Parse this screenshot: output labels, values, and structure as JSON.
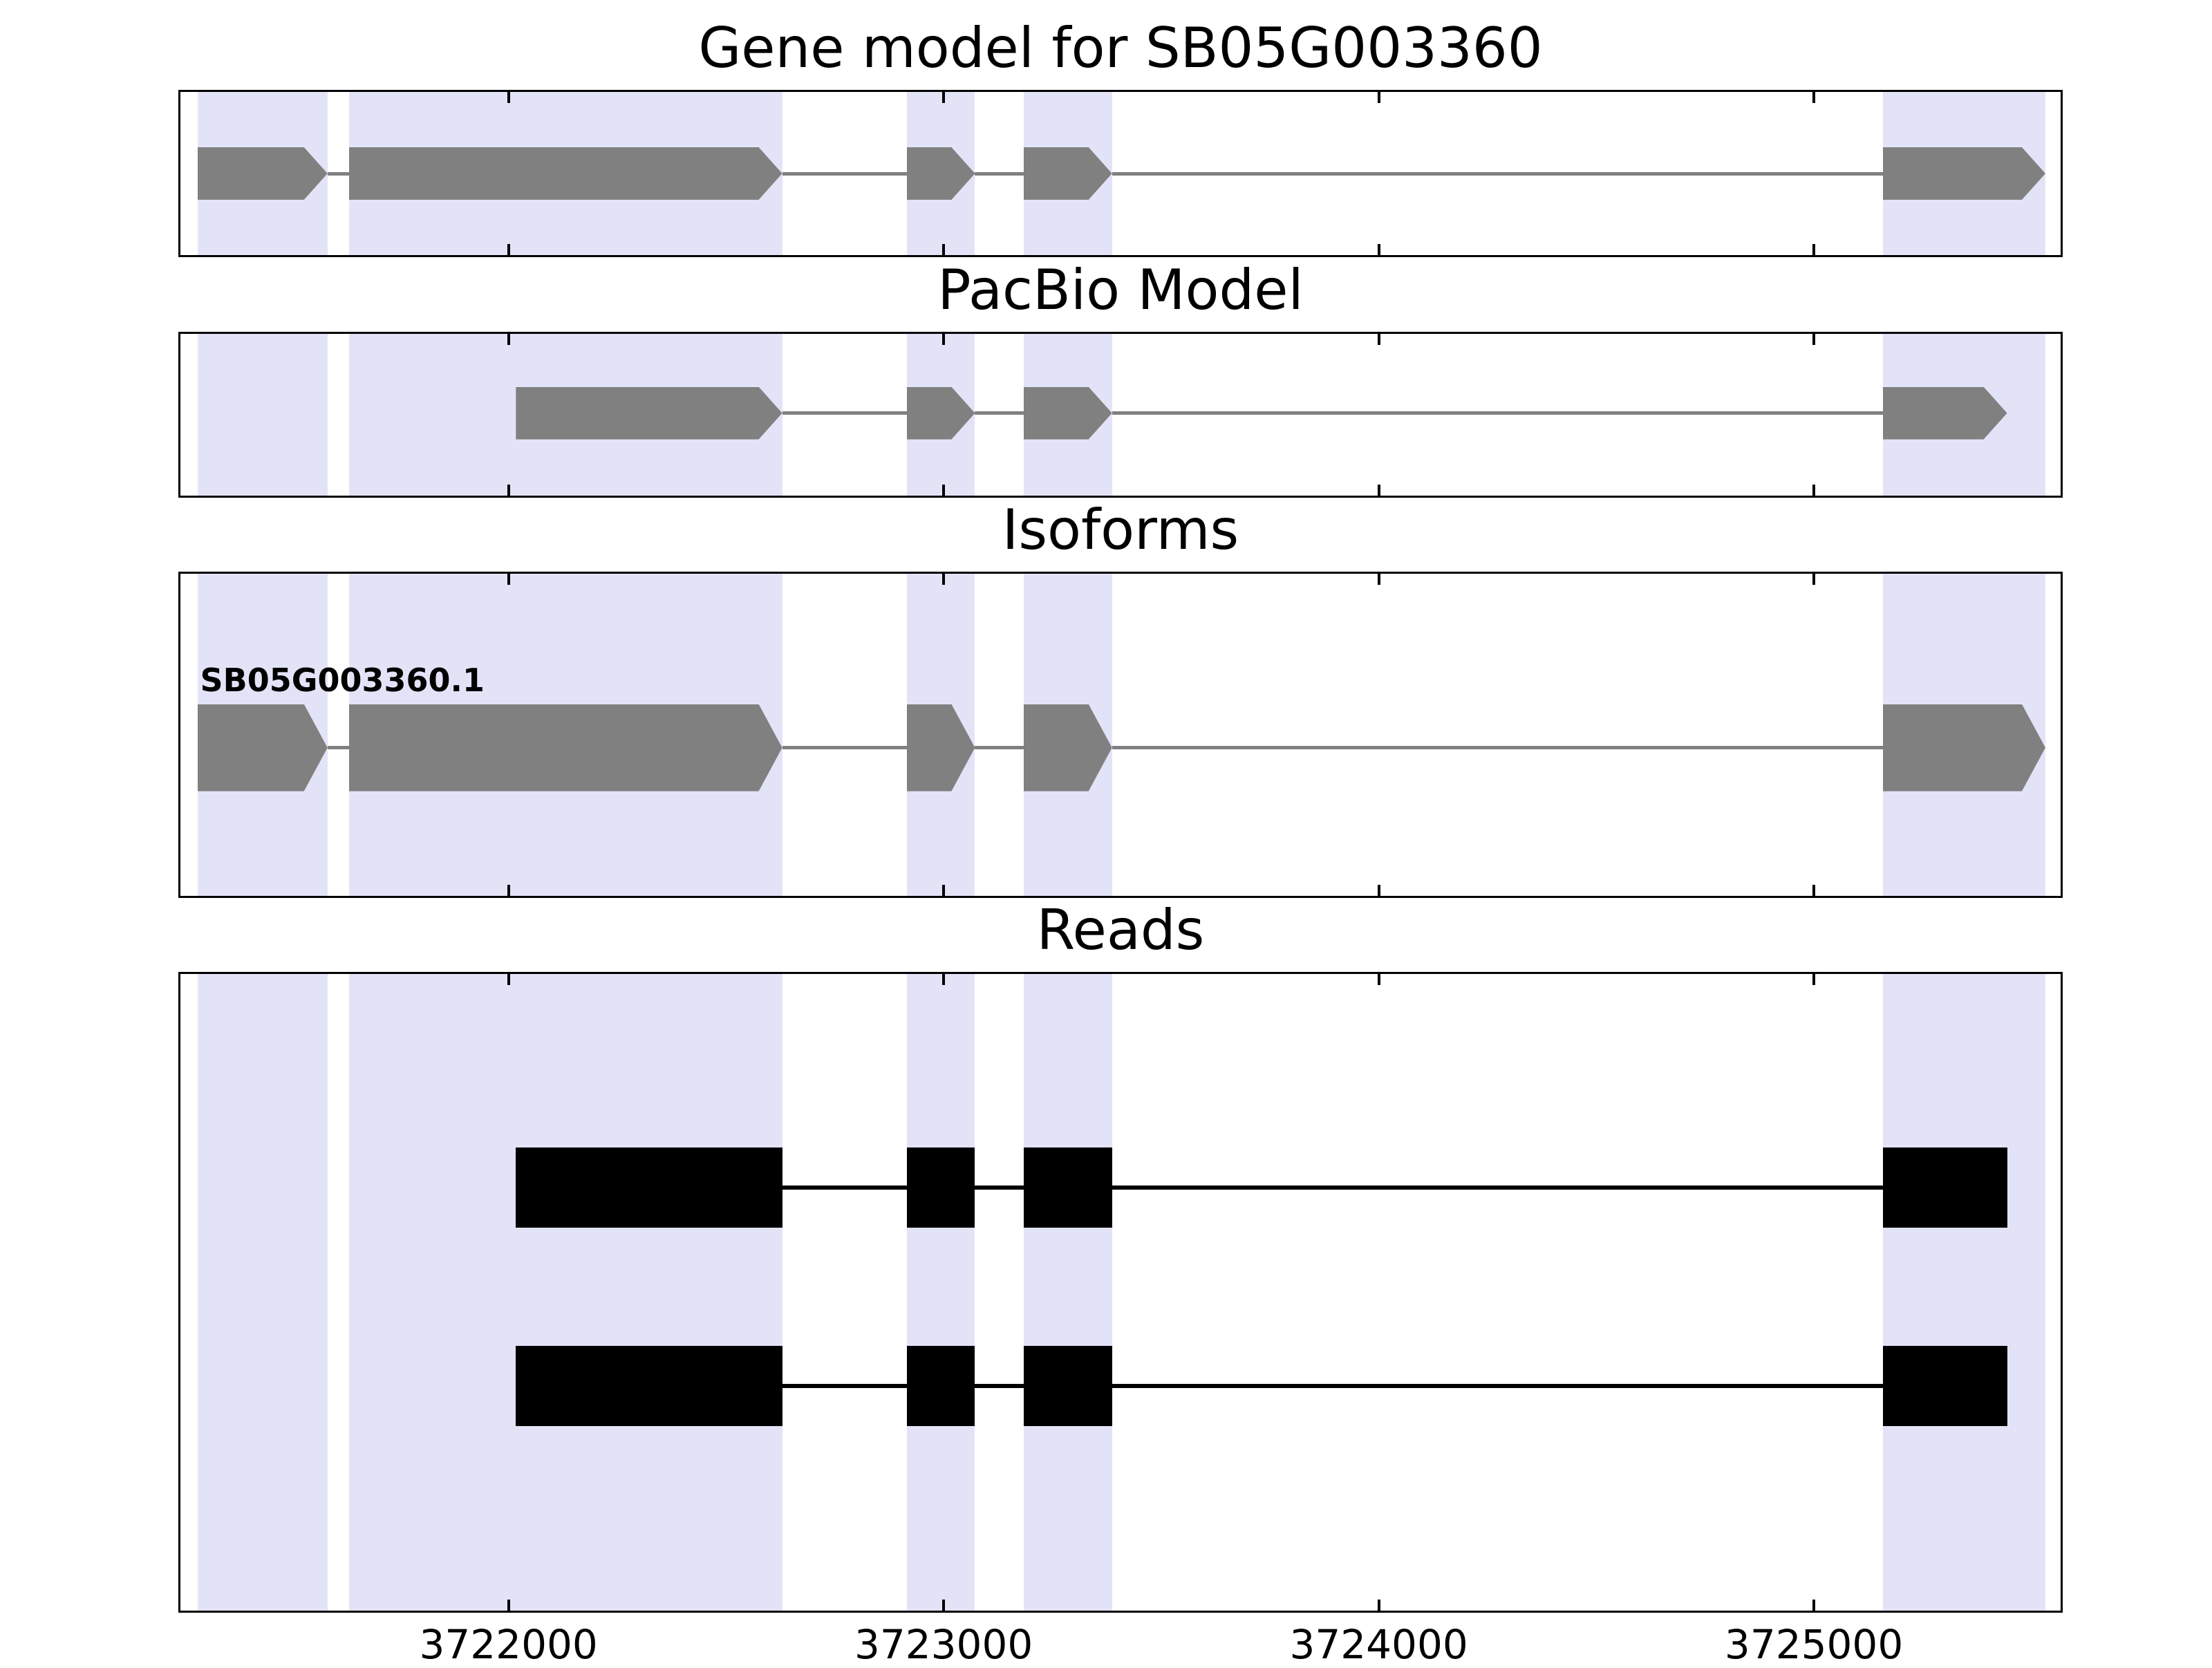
{
  "chart_data": {
    "type": "genome-tracks",
    "description": "Gene structure browser figure with four stacked panels sharing one genomic x-axis",
    "axis": {
      "domain": [
        3721246,
        3725567
      ],
      "ticks": [
        3722000,
        3723000,
        3724000,
        3725000
      ],
      "tick_labels": [
        "3722000",
        "3723000",
        "3724000",
        "3725000"
      ],
      "grid": false
    },
    "colors": {
      "highlight_band": "#e3e3f8",
      "model_feature": "#808080",
      "read_feature": "#000000",
      "panel_border": "#000000",
      "background": "#ffffff"
    },
    "highlight_regions": [
      [
        3721285,
        3721584
      ],
      [
        3721633,
        3722629
      ],
      [
        3722915,
        3723072
      ],
      [
        3723184,
        3723387
      ],
      [
        3725158,
        3725532
      ]
    ],
    "panels": [
      {
        "id": "gene-model",
        "title": "Gene model for SB05G003360",
        "tracks": [
          {
            "name": "SB05G003360",
            "label": "",
            "color": "#808080",
            "arrow": true,
            "strand": "+",
            "row": 0.5,
            "exon_height": 76,
            "line_width": 5,
            "exons": [
              [
                3721285,
                3721584
              ],
              [
                3721633,
                3722629
              ],
              [
                3722915,
                3723072
              ],
              [
                3723184,
                3723387
              ],
              [
                3725158,
                3725532
              ]
            ]
          }
        ]
      },
      {
        "id": "pacbio-model",
        "title": "PacBio Model",
        "tracks": [
          {
            "name": "pacbio-transcript",
            "label": "",
            "color": "#808080",
            "arrow": true,
            "strand": "+",
            "row": 0.49,
            "exon_height": 76,
            "line_width": 5,
            "exons": [
              [
                3722017,
                3722629
              ],
              [
                3722915,
                3723072
              ],
              [
                3723184,
                3723387
              ],
              [
                3725158,
                3725444
              ]
            ]
          }
        ]
      },
      {
        "id": "isoforms",
        "title": "Isoforms",
        "tracks": [
          {
            "name": "SB05G003360.1",
            "label": "SB05G003360.1",
            "color": "#808080",
            "arrow": true,
            "strand": "+",
            "row": 0.54,
            "exon_height": 126,
            "line_width": 5,
            "exons": [
              [
                3721285,
                3721584
              ],
              [
                3721633,
                3722629
              ],
              [
                3722915,
                3723072
              ],
              [
                3723184,
                3723387
              ],
              [
                3725158,
                3725532
              ]
            ]
          }
        ]
      },
      {
        "id": "reads",
        "title": "Reads",
        "tracks": [
          {
            "name": "read-1",
            "label": "",
            "color": "#000000",
            "arrow": false,
            "strand": "+",
            "row": 0.335,
            "exon_height": 116,
            "line_width": 6,
            "exons": [
              [
                3722017,
                3722629
              ],
              [
                3722915,
                3723072
              ],
              [
                3723184,
                3723387
              ],
              [
                3725158,
                3725444
              ]
            ]
          },
          {
            "name": "read-2",
            "label": "",
            "color": "#000000",
            "arrow": false,
            "strand": "+",
            "row": 0.647,
            "exon_height": 116,
            "line_width": 6,
            "exons": [
              [
                3722017,
                3722629
              ],
              [
                3722915,
                3723072
              ],
              [
                3723184,
                3723387
              ],
              [
                3725158,
                3725444
              ]
            ]
          }
        ]
      }
    ]
  }
}
